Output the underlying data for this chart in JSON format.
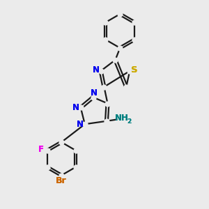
{
  "bg_color": "#ebebeb",
  "bond_color": "#1a1a1a",
  "bond_width": 1.6,
  "atom_colors": {
    "N": "#0000ee",
    "S": "#ccaa00",
    "F": "#ee00ee",
    "Br": "#cc6600",
    "NH2": "#008080"
  },
  "font_size": 8.5
}
